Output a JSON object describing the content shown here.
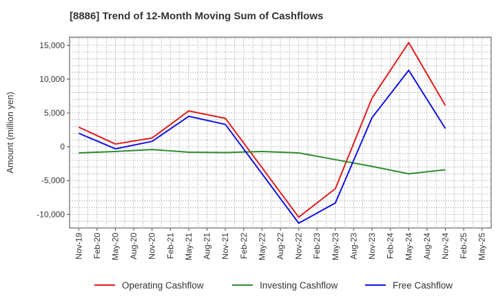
{
  "chart_data": {
    "type": "line",
    "title": "[8886]  Trend of 12-Month Moving Sum of Cashflows",
    "ylabel": "Amount (million yen)",
    "xlabel": "",
    "ylim": [
      -12000,
      16200
    ],
    "yticks": [
      15000,
      10000,
      5000,
      0,
      -5000,
      -10000
    ],
    "ytick_labels": [
      "15,000",
      "10,000",
      "5,000",
      "0",
      "-5,000",
      "-10,000"
    ],
    "categories": [
      "Nov-19",
      "Feb-20",
      "May-20",
      "Aug-20",
      "Nov-20",
      "Feb-21",
      "May-21",
      "Aug-21",
      "Nov-21",
      "Feb-22",
      "May-22",
      "Aug-22",
      "Nov-22",
      "Feb-23",
      "May-23",
      "Aug-23",
      "Nov-23",
      "Feb-24",
      "May-24",
      "Aug-24",
      "Nov-24",
      "Feb-25",
      "May-25"
    ],
    "grid": true,
    "legend_position": "bottom",
    "series": [
      {
        "name": "Operating Cashflow",
        "color": "#e41a1a",
        "values": [
          2900,
          null,
          400,
          null,
          1300,
          null,
          5300,
          null,
          4200,
          null,
          null,
          null,
          -10400,
          null,
          -6200,
          null,
          7200,
          null,
          15400,
          null,
          6100,
          null,
          null
        ]
      },
      {
        "name": "Investing Cashflow",
        "color": "#2e8b2e",
        "values": [
          -900,
          null,
          -700,
          null,
          -400,
          null,
          -800,
          null,
          -850,
          null,
          -700,
          null,
          -900,
          null,
          -1900,
          null,
          -2900,
          null,
          -4000,
          null,
          -3400,
          null,
          null
        ]
      },
      {
        "name": "Free Cashflow",
        "color": "#1010e0",
        "values": [
          2000,
          null,
          -300,
          null,
          800,
          null,
          4500,
          null,
          3300,
          null,
          null,
          null,
          -11300,
          null,
          -8300,
          null,
          4300,
          null,
          11300,
          null,
          2700,
          null,
          null
        ]
      }
    ]
  }
}
